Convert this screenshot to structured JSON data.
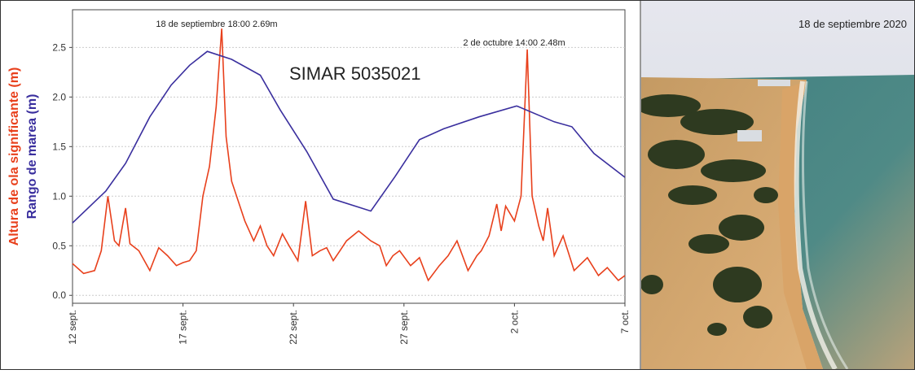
{
  "chart_data": {
    "type": "line",
    "title": "SIMAR 5035021",
    "annotations": [
      "18 de septiembre 18:00 2.69m",
      "2 de octubre 14:00 2.48m"
    ],
    "photo_caption": "18 de septiembre 2020",
    "xlim": [
      0,
      25
    ],
    "xticks": [
      {
        "value": 0,
        "label": "12 sept."
      },
      {
        "value": 5,
        "label": "17 sept."
      },
      {
        "value": 10,
        "label": "22 sept."
      },
      {
        "value": 15,
        "label": "27 sept."
      },
      {
        "value": 20,
        "label": "2 oct."
      },
      {
        "value": 25,
        "label": "7 oct."
      }
    ],
    "ylim": [
      -0.08,
      2.88
    ],
    "yticks": [
      {
        "value": 0,
        "label": "0.0"
      },
      {
        "value": 0.5,
        "label": "0.5"
      },
      {
        "value": 1,
        "label": "1.0"
      },
      {
        "value": 1.5,
        "label": "1.5"
      },
      {
        "value": 2,
        "label": "2.0"
      },
      {
        "value": 2.5,
        "label": "2.5"
      }
    ],
    "grid": true,
    "series": [
      {
        "name": "Altura de ola significante (m)",
        "color": "#e8401c",
        "x": [
          0,
          0.5,
          1,
          1.3,
          1.6,
          1.9,
          2.1,
          2.4,
          2.6,
          3,
          3.5,
          3.9,
          4.3,
          4.7,
          5,
          5.3,
          5.6,
          5.9,
          6.2,
          6.5,
          6.75,
          6.95,
          7.2,
          7.5,
          7.8,
          8.2,
          8.5,
          8.8,
          9.1,
          9.5,
          9.8,
          10.2,
          10.55,
          10.85,
          11.2,
          11.5,
          11.8,
          12.1,
          12.4,
          12.95,
          13.5,
          13.9,
          14.2,
          14.5,
          14.8,
          15.3,
          15.7,
          16.1,
          16.6,
          17,
          17.4,
          17.9,
          18.3,
          18.5,
          18.85,
          19.2,
          19.4,
          19.6,
          20,
          20.3,
          20.58,
          20.8,
          21.1,
          21.3,
          21.5,
          21.8,
          22.2,
          22.7,
          23.3,
          23.8,
          24.2,
          24.7,
          25
        ],
        "values": [
          0.32,
          0.22,
          0.25,
          0.45,
          1.0,
          0.55,
          0.5,
          0.88,
          0.52,
          0.45,
          0.25,
          0.48,
          0.4,
          0.3,
          0.33,
          0.35,
          0.45,
          1.0,
          1.3,
          1.9,
          2.69,
          1.6,
          1.15,
          0.95,
          0.75,
          0.55,
          0.7,
          0.5,
          0.4,
          0.62,
          0.5,
          0.35,
          0.95,
          0.4,
          0.45,
          0.48,
          0.35,
          0.45,
          0.55,
          0.65,
          0.55,
          0.5,
          0.3,
          0.4,
          0.45,
          0.3,
          0.38,
          0.15,
          0.3,
          0.4,
          0.55,
          0.25,
          0.4,
          0.45,
          0.6,
          0.92,
          0.65,
          0.9,
          0.75,
          1.0,
          2.48,
          1.0,
          0.7,
          0.55,
          0.88,
          0.4,
          0.6,
          0.25,
          0.38,
          0.2,
          0.28,
          0.15,
          0.2
        ]
      },
      {
        "name": "Rango de marea (m)",
        "color": "#3a2f9e",
        "x": [
          0,
          1.5,
          2.4,
          3.5,
          4.46,
          5.3,
          6.1,
          7.2,
          8.5,
          9.4,
          10.6,
          11.8,
          13.5,
          14.6,
          15.7,
          16.8,
          18.4,
          20.1,
          21.8,
          22.6,
          23.6,
          25
        ],
        "values": [
          0.73,
          1.05,
          1.33,
          1.8,
          2.12,
          2.32,
          2.46,
          2.38,
          2.22,
          1.87,
          1.45,
          0.97,
          0.85,
          1.2,
          1.57,
          1.68,
          1.8,
          1.91,
          1.75,
          1.7,
          1.43,
          1.19
        ]
      }
    ]
  }
}
